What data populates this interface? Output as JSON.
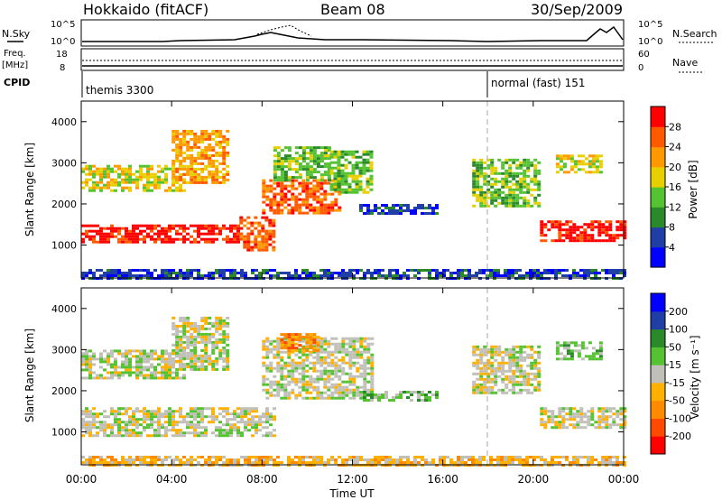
{
  "header": {
    "title": "Hokkaido (fitACF)",
    "beam": "Beam 08",
    "date": "30/Sep/2009"
  },
  "params": {
    "nsky_label": "N.Sky",
    "nsky_ticks": [
      "10^5",
      "10^0"
    ],
    "freq_label_1": "Freq.",
    "freq_label_2": "[MHz]",
    "freq_ticks": [
      "18",
      "8"
    ],
    "cpid_label": "CPID",
    "nsearch_label": "N.Search",
    "nsearch_ticks": [
      "10^5",
      "10^0"
    ],
    "nave_label": "Nave",
    "nave_ticks": [
      "60",
      "0"
    ],
    "cpid_1": "themis 3300",
    "cpid_2": "normal (fast) 151"
  },
  "chart_data": [
    {
      "type": "heatmap",
      "name": "power",
      "ylabel": "Slant Range [km]",
      "xlabel": "Time UT",
      "xlim": [
        0,
        24
      ],
      "ylim": [
        200,
        4500
      ],
      "y_ticks": [
        1000,
        2000,
        3000,
        4000
      ],
      "x_tick_labels": [
        "00:00",
        "04:00",
        "08:00",
        "12:00",
        "16:00",
        "20:00",
        "00:00"
      ],
      "colorbar_label": "Power [dB]",
      "colorbar_ticks": [
        "28",
        "24",
        "20",
        "16",
        "12",
        "8",
        "4"
      ],
      "colors": [
        "#0000ff",
        "#1f3fa6",
        "#2a8a2a",
        "#55c232",
        "#e8d000",
        "#ff9900",
        "#ff5a00",
        "#ff0000"
      ],
      "regions": [
        {
          "t0": 0.0,
          "t1": 7.0,
          "r0": 1050,
          "r1": 1500,
          "level": 7
        },
        {
          "t0": 7.0,
          "t1": 8.5,
          "r0": 850,
          "r1": 1700,
          "level": 6
        },
        {
          "t0": 0.0,
          "t1": 4.5,
          "r0": 2300,
          "r1": 2950,
          "level": 4
        },
        {
          "t0": 4.0,
          "t1": 6.5,
          "r0": 2500,
          "r1": 3800,
          "level": 5
        },
        {
          "t0": 8.0,
          "t1": 11.5,
          "r0": 1800,
          "r1": 2600,
          "level": 6
        },
        {
          "t0": 8.5,
          "t1": 11.0,
          "r0": 2600,
          "r1": 3400,
          "level": 3
        },
        {
          "t0": 11.0,
          "t1": 12.8,
          "r0": 2300,
          "r1": 3300,
          "level": 3
        },
        {
          "t0": 12.3,
          "t1": 15.8,
          "r0": 1750,
          "r1": 2000,
          "level": 1
        },
        {
          "t0": 17.3,
          "t1": 20.3,
          "r0": 1950,
          "r1": 3100,
          "level": 3
        },
        {
          "t0": 20.3,
          "t1": 24.0,
          "r0": 1100,
          "r1": 1600,
          "level": 7
        },
        {
          "t0": 21.0,
          "t1": 23.0,
          "r0": 2800,
          "r1": 3200,
          "level": 4
        },
        {
          "t0": 0.0,
          "t1": 24.0,
          "r0": 200,
          "r1": 420,
          "level": 1
        }
      ]
    },
    {
      "type": "heatmap",
      "name": "velocity",
      "ylabel": "Slant Range [km]",
      "xlabel": "Time UT",
      "xlim": [
        0,
        24
      ],
      "ylim": [
        200,
        4500
      ],
      "y_ticks": [
        1000,
        2000,
        3000,
        4000
      ],
      "x_tick_labels": [
        "00:00",
        "04:00",
        "08:00",
        "12:00",
        "16:00",
        "20:00",
        "00:00"
      ],
      "colorbar_label": "Velocity [m s⁻¹]",
      "colorbar_ticks": [
        "200",
        "100",
        "50",
        "15",
        "-15",
        "-50",
        "-100",
        "-200"
      ],
      "colors": [
        "#ff0000",
        "#ff4a00",
        "#ff8a00",
        "#ffb000",
        "#c0c0b8",
        "#55c232",
        "#2a8a2a",
        "#1f3fa6",
        "#0000ff"
      ],
      "regions": [
        {
          "t0": 0.0,
          "t1": 8.5,
          "r0": 900,
          "r1": 1600,
          "level": 4
        },
        {
          "t0": 0.0,
          "t1": 4.5,
          "r0": 2300,
          "r1": 3000,
          "level": 4
        },
        {
          "t0": 4.0,
          "t1": 6.5,
          "r0": 2500,
          "r1": 3800,
          "level": 4
        },
        {
          "t0": 8.0,
          "t1": 12.8,
          "r0": 1800,
          "r1": 3300,
          "level": 4
        },
        {
          "t0": 8.8,
          "t1": 10.5,
          "r0": 3000,
          "r1": 3400,
          "level": 2
        },
        {
          "t0": 12.3,
          "t1": 15.8,
          "r0": 1750,
          "r1": 2000,
          "level": 5
        },
        {
          "t0": 17.3,
          "t1": 20.3,
          "r0": 1950,
          "r1": 3100,
          "level": 4
        },
        {
          "t0": 20.3,
          "t1": 24.0,
          "r0": 1100,
          "r1": 1600,
          "level": 4
        },
        {
          "t0": 21.0,
          "t1": 23.0,
          "r0": 2800,
          "r1": 3200,
          "level": 5
        },
        {
          "t0": 0.0,
          "t1": 24.0,
          "r0": 200,
          "r1": 420,
          "level": 3
        }
      ]
    }
  ]
}
